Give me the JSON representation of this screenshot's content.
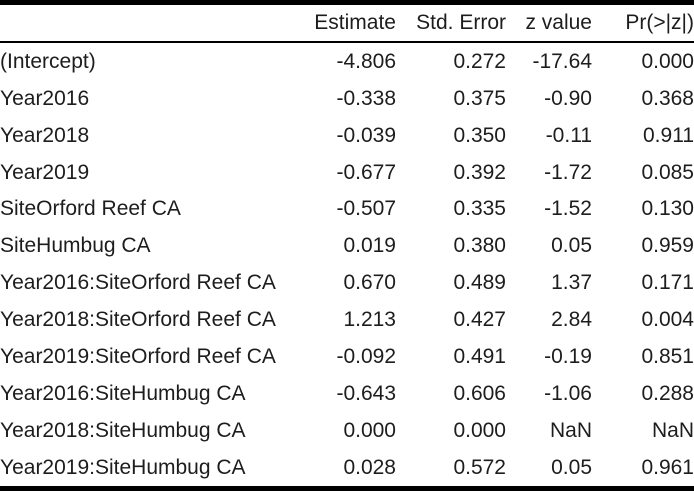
{
  "chart_data": {
    "type": "table",
    "title": "",
    "columns": [
      "",
      "Estimate",
      "Std. Error",
      "z value",
      "Pr(>|z|)"
    ],
    "rows": [
      [
        "(Intercept)",
        "-4.806",
        "0.272",
        "-17.64",
        "0.000"
      ],
      [
        "Year2016",
        "-0.338",
        "0.375",
        "-0.90",
        "0.368"
      ],
      [
        "Year2018",
        "-0.039",
        "0.350",
        "-0.11",
        "0.911"
      ],
      [
        "Year2019",
        "-0.677",
        "0.392",
        "-1.72",
        "0.085"
      ],
      [
        "SiteOrford Reef CA",
        "-0.507",
        "0.335",
        "-1.52",
        "0.130"
      ],
      [
        "SiteHumbug CA",
        "0.019",
        "0.380",
        "0.05",
        "0.959"
      ],
      [
        "Year2016:SiteOrford Reef CA",
        "0.670",
        "0.489",
        "1.37",
        "0.171"
      ],
      [
        "Year2018:SiteOrford Reef CA",
        "1.213",
        "0.427",
        "2.84",
        "0.004"
      ],
      [
        "Year2019:SiteOrford Reef CA",
        "-0.092",
        "0.491",
        "-0.19",
        "0.851"
      ],
      [
        "Year2016:SiteHumbug CA",
        "-0.643",
        "0.606",
        "-1.06",
        "0.288"
      ],
      [
        "Year2018:SiteHumbug CA",
        "0.000",
        "0.000",
        "NaN",
        "NaN"
      ],
      [
        "Year2019:SiteHumbug CA",
        "0.028",
        "0.572",
        "0.05",
        "0.961"
      ]
    ],
    "layout": {
      "header_align": "right",
      "term_column_align": "left",
      "numeric_align": "right",
      "gridlines": "none",
      "rules": [
        "thick-top",
        "thin-under-header",
        "thick-bottom"
      ]
    }
  },
  "colors": {
    "border": "#000000",
    "text": "#1d1d1d",
    "background": "#ffffff"
  }
}
